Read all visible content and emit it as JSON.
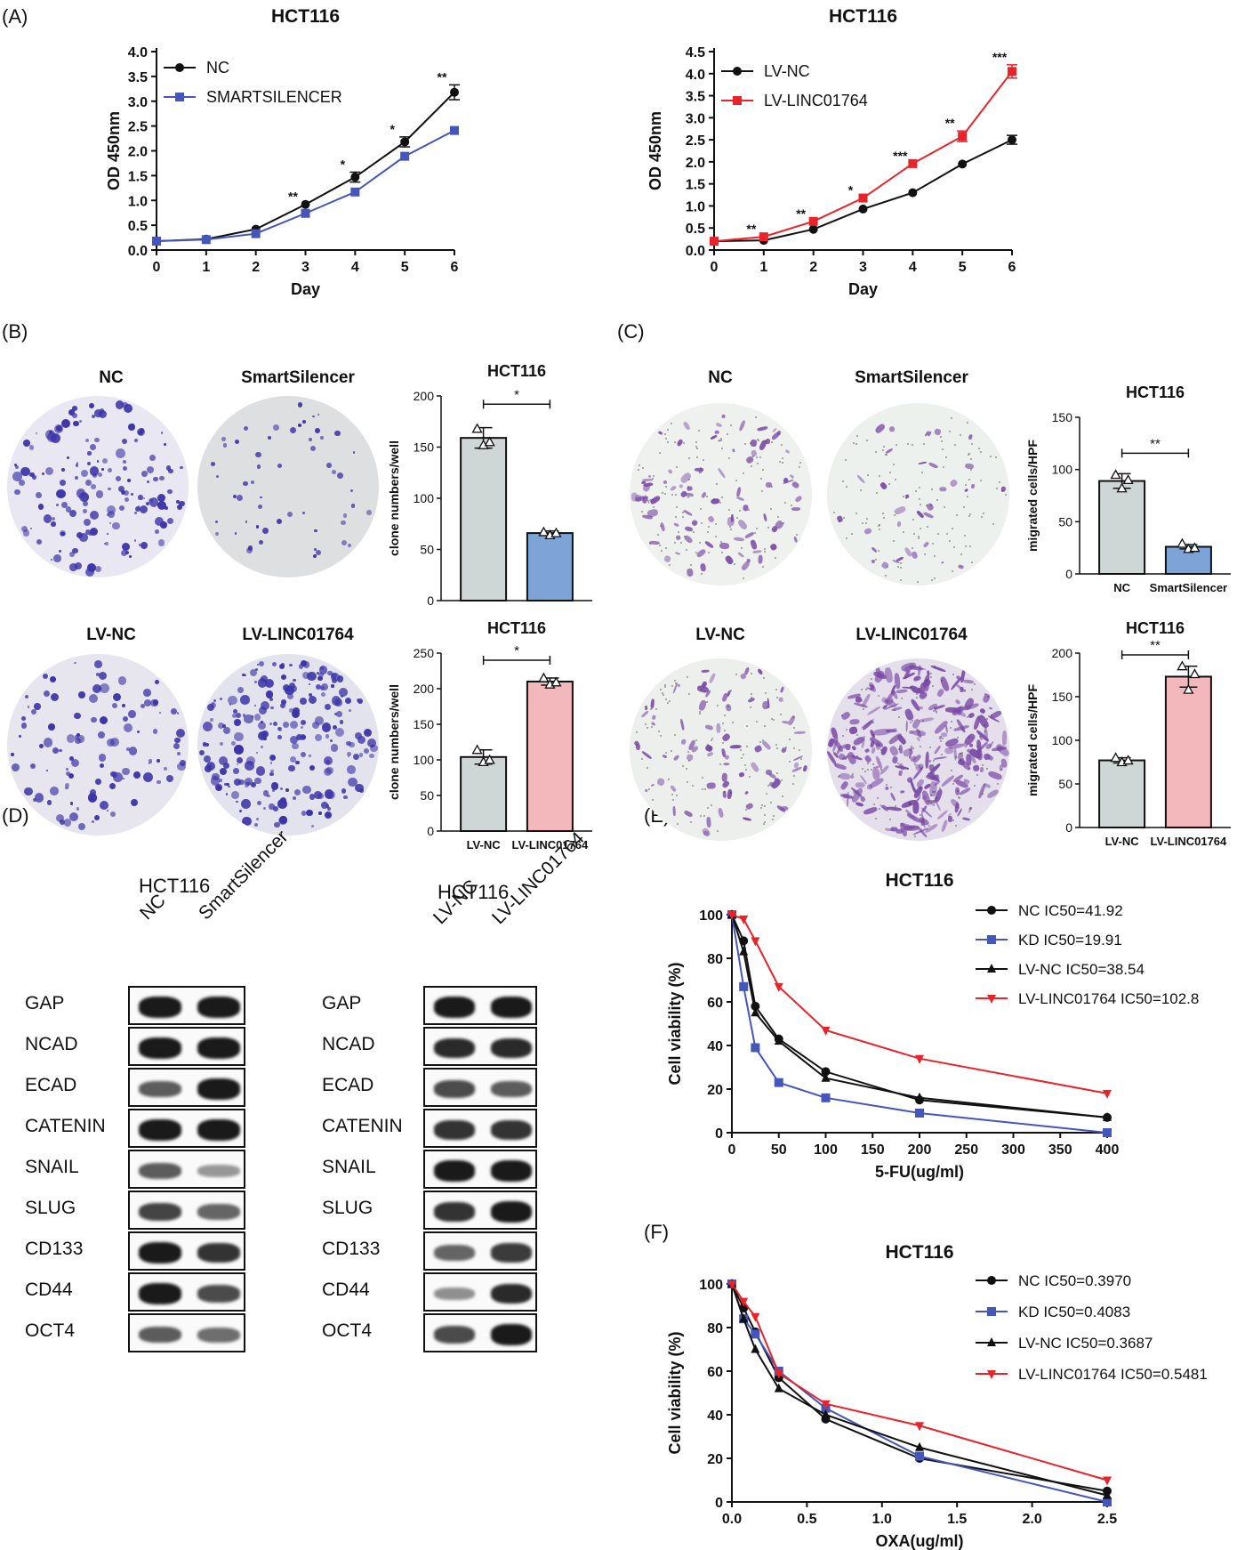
{
  "panels": {
    "a": "(A)",
    "b": "(B)",
    "c": "(C)",
    "d": "(D)",
    "e": "(E)",
    "f": "(F)"
  },
  "colors": {
    "black": "#111111",
    "blue": "#4455bb",
    "red": "#e8232a",
    "gray_bar": "#cfd6d6",
    "blue_bar": "#7ea3d6",
    "pink_bar": "#f2b8bc",
    "crystal_violet": "#3b33a8",
    "transwell_purple": "#7a4aa6"
  },
  "chart_data": [
    {
      "id": "a-left",
      "type": "line",
      "title": "HCT116",
      "xlabel": "Day",
      "ylabel": "OD 450nm",
      "x": [
        0,
        1,
        2,
        3,
        4,
        5,
        6
      ],
      "xlim": [
        0,
        6
      ],
      "ylim": [
        0,
        4.0
      ],
      "xticks": [
        "0",
        "1",
        "2",
        "3",
        "4",
        "5",
        "6"
      ],
      "yticks": [
        "0.0",
        "0.5",
        "1.0",
        "1.5",
        "2.0",
        "2.5",
        "3.0",
        "3.5",
        "4.0"
      ],
      "legend": "top-left",
      "series": [
        {
          "name": "NC",
          "color": "#111111",
          "marker": "circle",
          "values": [
            0.18,
            0.22,
            0.42,
            0.92,
            1.47,
            2.18,
            3.18
          ],
          "err": [
            0,
            0,
            0,
            0,
            0.1,
            0.1,
            0.15
          ]
        },
        {
          "name": "SMARTSILENCER",
          "color": "#4455bb",
          "marker": "square",
          "values": [
            0.18,
            0.21,
            0.33,
            0.74,
            1.17,
            1.89,
            2.41
          ],
          "err": [
            0,
            0,
            0,
            0,
            0,
            0,
            0
          ]
        }
      ],
      "annotations": [
        {
          "x": 3,
          "text": "**"
        },
        {
          "x": 4,
          "text": "*"
        },
        {
          "x": 5,
          "text": "*"
        },
        {
          "x": 6,
          "text": "**"
        }
      ]
    },
    {
      "id": "a-right",
      "type": "line",
      "title": "HCT116",
      "xlabel": "Day",
      "ylabel": "OD 450nm",
      "x": [
        0,
        1,
        2,
        3,
        4,
        5,
        6
      ],
      "xlim": [
        0,
        6
      ],
      "ylim": [
        0,
        4.5
      ],
      "xticks": [
        "0",
        "1",
        "2",
        "3",
        "4",
        "5",
        "6"
      ],
      "yticks": [
        "0.0",
        "0.5",
        "1.0",
        "1.5",
        "2.0",
        "2.5",
        "3.0",
        "3.5",
        "4.0",
        "4.5"
      ],
      "legend": "top-left",
      "series": [
        {
          "name": "LV-NC",
          "color": "#111111",
          "marker": "circle",
          "values": [
            0.2,
            0.22,
            0.47,
            0.93,
            1.3,
            1.95,
            2.5
          ],
          "err": [
            0,
            0,
            0,
            0,
            0,
            0,
            0.1
          ]
        },
        {
          "name": "LV-LINC01764",
          "color": "#e8232a",
          "marker": "square",
          "values": [
            0.2,
            0.3,
            0.65,
            1.18,
            1.96,
            2.58,
            4.05
          ],
          "err": [
            0,
            0,
            0,
            0,
            0,
            0.12,
            0.15
          ]
        }
      ],
      "annotations": [
        {
          "x": 1,
          "text": "**"
        },
        {
          "x": 2,
          "text": "**"
        },
        {
          "x": 3,
          "text": "*"
        },
        {
          "x": 4,
          "text": "***"
        },
        {
          "x": 5,
          "text": "**"
        },
        {
          "x": 6,
          "text": "***"
        }
      ]
    },
    {
      "id": "b-top",
      "type": "bar",
      "title": "HCT116",
      "ylabel": "clone numbers/well",
      "categories": [
        "NC",
        "SmartSilencer"
      ],
      "values": [
        159,
        66
      ],
      "err": [
        10,
        2
      ],
      "points": [
        [
          168,
          152,
          155
        ],
        [
          67,
          64,
          66
        ]
      ],
      "colors": [
        "#cfd6d6",
        "#7ea3d6"
      ],
      "ylim": [
        0,
        200
      ],
      "yticks": [
        "0",
        "50",
        "100",
        "150",
        "200"
      ],
      "sig": "*"
    },
    {
      "id": "b-bottom",
      "type": "bar",
      "title": "HCT116",
      "ylabel": "clone numbers/well",
      "categories": [
        "LV-NC",
        "LV-LINC01764"
      ],
      "values": [
        104,
        210
      ],
      "err": [
        10,
        5
      ],
      "points": [
        [
          114,
          97,
          100
        ],
        [
          215,
          206,
          209
        ]
      ],
      "colors": [
        "#cfd6d6",
        "#f2b8bc"
      ],
      "ylim": [
        0,
        250
      ],
      "yticks": [
        "0",
        "50",
        "100",
        "150",
        "200",
        "250"
      ],
      "sig": "*"
    },
    {
      "id": "c-top",
      "type": "bar",
      "title": "HCT116",
      "ylabel": "migrated cells/HPF",
      "categories": [
        "NC",
        "SmartSilencer"
      ],
      "values": [
        89,
        26
      ],
      "err": [
        7,
        2
      ],
      "points": [
        [
          95,
          82,
          90
        ],
        [
          29,
          24,
          25
        ]
      ],
      "colors": [
        "#cfd6d6",
        "#7ea3d6"
      ],
      "ylim": [
        0,
        150
      ],
      "yticks": [
        "0",
        "50",
        "100",
        "150"
      ],
      "sig": "**"
    },
    {
      "id": "c-bottom",
      "type": "bar",
      "title": "HCT116",
      "ylabel": "migrated cells/HPF",
      "categories": [
        "LV-NC",
        "LV-LINC01764"
      ],
      "values": [
        77,
        173
      ],
      "err": [
        3,
        12
      ],
      "points": [
        [
          80,
          75,
          77
        ],
        [
          185,
          158,
          176
        ]
      ],
      "colors": [
        "#cfd6d6",
        "#f2b8bc"
      ],
      "ylim": [
        0,
        200
      ],
      "yticks": [
        "0",
        "50",
        "100",
        "150",
        "200"
      ],
      "sig": "**"
    },
    {
      "id": "e",
      "type": "line",
      "title": "HCT116",
      "xlabel": "5-FU(ug/ml)",
      "ylabel": "Cell viability (%)",
      "xlim": [
        0,
        400
      ],
      "ylim": [
        0,
        100
      ],
      "xticks": [
        "0",
        "50",
        "100",
        "150",
        "200",
        "250",
        "300",
        "350",
        "400"
      ],
      "yticks": [
        "0",
        "20",
        "40",
        "60",
        "80",
        "100"
      ],
      "legend": "top-right",
      "series": [
        {
          "name": "NC  IC50=41.92",
          "color": "#111111",
          "marker": "circle",
          "x": [
            0,
            12.5,
            25,
            50,
            100,
            200,
            400
          ],
          "values": [
            100,
            88,
            58,
            43,
            28,
            15,
            7
          ]
        },
        {
          "name": "KD  IC50=19.91",
          "color": "#4455bb",
          "marker": "square",
          "x": [
            0,
            12.5,
            25,
            50,
            100,
            200,
            400
          ],
          "values": [
            100,
            67,
            39,
            23,
            16,
            9,
            0
          ]
        },
        {
          "name": "LV-NC  IC50=38.54",
          "color": "#111111",
          "marker": "triangle",
          "x": [
            0,
            12.5,
            25,
            50,
            100,
            200,
            400
          ],
          "values": [
            100,
            83,
            55,
            42,
            25,
            16,
            7
          ]
        },
        {
          "name": "LV-LINC01764  IC50=102.8",
          "color": "#e8232a",
          "marker": "triangle-down",
          "x": [
            0,
            12.5,
            25,
            50,
            100,
            200,
            400
          ],
          "values": [
            100,
            98,
            88,
            67,
            47,
            34,
            18
          ]
        }
      ]
    },
    {
      "id": "f",
      "type": "line",
      "title": "HCT116",
      "xlabel": "OXA(ug/ml)",
      "ylabel": "Cell viability (%)",
      "xlim": [
        0,
        2.5
      ],
      "ylim": [
        0,
        100
      ],
      "xticks": [
        "0.0",
        "0.5",
        "1.0",
        "1.5",
        "2.0",
        "2.5"
      ],
      "yticks": [
        "0",
        "20",
        "40",
        "60",
        "80",
        "100"
      ],
      "legend": "top-right",
      "series": [
        {
          "name": "NC IC50=0.3970",
          "color": "#111111",
          "marker": "circle",
          "x": [
            0,
            0.078,
            0.156,
            0.3125,
            0.625,
            1.25,
            2.5
          ],
          "values": [
            100,
            89,
            78,
            57,
            38,
            20,
            5
          ]
        },
        {
          "name": "KD IC50=0.4083",
          "color": "#4455bb",
          "marker": "square",
          "x": [
            0,
            0.078,
            0.156,
            0.3125,
            0.625,
            1.25,
            2.5
          ],
          "values": [
            100,
            84,
            77,
            60,
            43,
            21,
            0
          ]
        },
        {
          "name": "LV-NC  IC50=0.3687",
          "color": "#111111",
          "marker": "triangle",
          "x": [
            0,
            0.078,
            0.156,
            0.3125,
            0.625,
            1.25,
            2.5
          ],
          "values": [
            100,
            84,
            70,
            52,
            40,
            25,
            3
          ]
        },
        {
          "name": "LV-LINC01764 IC50=0.5481",
          "color": "#e8232a",
          "marker": "triangle-down",
          "x": [
            0,
            0.078,
            0.156,
            0.3125,
            0.625,
            1.25,
            2.5
          ],
          "values": [
            100,
            92,
            85,
            59,
            45,
            35,
            10
          ]
        }
      ]
    }
  ],
  "dishes": {
    "b_top": [
      "NC",
      "SmartSilencer"
    ],
    "b_bottom": [
      "LV-NC",
      "LV-LINC01764"
    ],
    "c_top": [
      "NC",
      "SmartSilencer"
    ],
    "c_bottom": [
      "LV-NC",
      "LV-LINC01764"
    ]
  },
  "western": {
    "left": {
      "cell_line": "HCT116",
      "lanes": [
        "NC",
        "SmartSilencer"
      ]
    },
    "right": {
      "cell_line": "HCT116",
      "lanes": [
        "LV-NC",
        "LV-LINC01764"
      ]
    },
    "proteins": [
      "GAP",
      "NCAD",
      "ECAD",
      "CATENIN",
      "SNAIL",
      "SLUG",
      "CD133",
      "CD44",
      "OCT4"
    ]
  }
}
